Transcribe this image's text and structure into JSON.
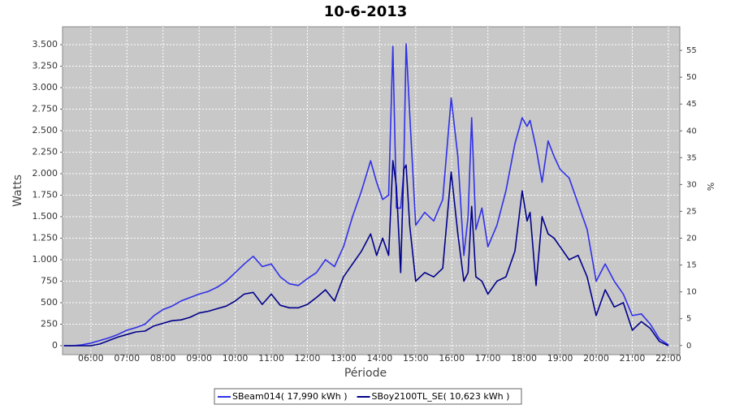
{
  "chart_data": {
    "type": "line",
    "title": "10-6-2013",
    "x_label": "Période",
    "y_label": "Watts",
    "y2_label": "%",
    "x": [
      "05:15",
      "05:30",
      "05:45",
      "06:00",
      "06:15",
      "06:30",
      "06:45",
      "07:00",
      "07:15",
      "07:30",
      "07:45",
      "08:00",
      "08:15",
      "08:30",
      "08:45",
      "09:00",
      "09:15",
      "09:30",
      "09:45",
      "10:00",
      "10:15",
      "10:30",
      "10:45",
      "11:00",
      "11:15",
      "11:30",
      "11:45",
      "12:00",
      "12:15",
      "12:30",
      "12:45",
      "13:00",
      "13:15",
      "13:30",
      "13:45",
      "13:55",
      "14:05",
      "14:15",
      "14:22",
      "14:28",
      "14:35",
      "14:40",
      "14:44",
      "14:50",
      "15:00",
      "15:15",
      "15:30",
      "15:45",
      "15:59",
      "16:10",
      "16:20",
      "16:27",
      "16:33",
      "16:40",
      "16:50",
      "17:00",
      "17:15",
      "17:30",
      "17:45",
      "17:57",
      "18:05",
      "18:10",
      "18:20",
      "18:30",
      "18:40",
      "18:50",
      "19:00",
      "19:15",
      "19:30",
      "19:45",
      "20:00",
      "20:15",
      "20:30",
      "20:45",
      "21:00",
      "21:15",
      "21:30",
      "21:45",
      "22:00"
    ],
    "series": [
      {
        "name": "SBeam014( 17,990 kWh )",
        "color": "#3030e8",
        "values": [
          0,
          0,
          10,
          30,
          60,
          90,
          130,
          180,
          210,
          250,
          350,
          420,
          460,
          520,
          560,
          600,
          630,
          680,
          750,
          850,
          950,
          1040,
          920,
          950,
          800,
          720,
          700,
          780,
          850,
          1000,
          920,
          1150,
          1500,
          1800,
          2150,
          1900,
          1700,
          1750,
          3480,
          1600,
          1600,
          2000,
          3510,
          2700,
          1400,
          1550,
          1450,
          1700,
          2880,
          2200,
          1050,
          1500,
          2650,
          1350,
          1600,
          1150,
          1400,
          1800,
          2350,
          2650,
          2550,
          2620,
          2300,
          1900,
          2380,
          2200,
          2050,
          1950,
          1650,
          1350,
          750,
          950,
          750,
          600,
          350,
          370,
          250,
          80,
          10
        ]
      },
      {
        "name": "SBoy2100TL_SE( 10,623 kWh )",
        "color": "#00008b",
        "values": [
          0,
          0,
          0,
          0,
          20,
          60,
          100,
          130,
          160,
          170,
          230,
          260,
          290,
          300,
          330,
          380,
          400,
          430,
          460,
          520,
          600,
          620,
          480,
          600,
          470,
          440,
          440,
          480,
          560,
          650,
          520,
          800,
          950,
          1100,
          1300,
          1050,
          1250,
          1050,
          2150,
          1850,
          850,
          2050,
          2100,
          1400,
          750,
          850,
          800,
          900,
          2020,
          1300,
          750,
          850,
          1620,
          800,
          750,
          600,
          750,
          800,
          1100,
          1800,
          1450,
          1550,
          700,
          1500,
          1300,
          1250,
          1150,
          1000,
          1050,
          800,
          350,
          650,
          450,
          500,
          180,
          280,
          200,
          50,
          0
        ]
      }
    ],
    "xlim": [
      "05:13",
      "22:19"
    ],
    "xticks": [
      "06:00",
      "07:00",
      "08:00",
      "09:00",
      "10:00",
      "11:00",
      "12:00",
      "13:00",
      "14:00",
      "15:00",
      "16:00",
      "17:00",
      "18:00",
      "19:00",
      "20:00",
      "21:00",
      "22:00"
    ],
    "ylim": [
      -104,
      3708
    ],
    "yticks": [
      0,
      250,
      500,
      750,
      {
        "value": 1000,
        "label": "1.000"
      },
      {
        "value": 1250,
        "label": "1.250"
      },
      {
        "value": 1500,
        "label": "1.500"
      },
      {
        "value": 1750,
        "label": "1.750"
      },
      {
        "value": 2000,
        "label": "2.000"
      },
      {
        "value": 2250,
        "label": "2.250"
      },
      {
        "value": 2500,
        "label": "2.500"
      },
      {
        "value": 2750,
        "label": "2.750"
      },
      {
        "value": 3000,
        "label": "3.000"
      },
      {
        "value": 3250,
        "label": "3.250"
      },
      {
        "value": 3500,
        "label": "3.500"
      }
    ],
    "y2lim": [
      -1.7,
      59.4
    ],
    "y2ticks": [
      0,
      5,
      10,
      15,
      20,
      25,
      30,
      35,
      40,
      45,
      50,
      55
    ],
    "grid": true,
    "legend": "bottom"
  }
}
